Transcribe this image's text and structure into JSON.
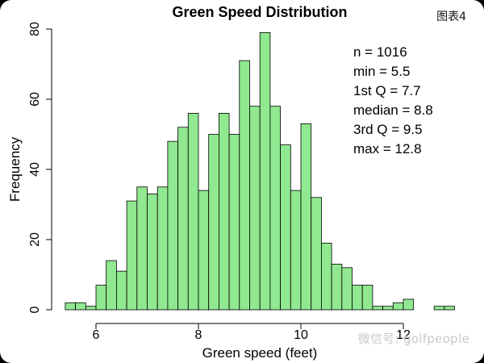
{
  "figure_label": "图表4",
  "watermark": "微信号: golfpeople",
  "chart_data": {
    "type": "bar",
    "title": "Green Speed Distribution",
    "xlabel": "Green speed (feet)",
    "ylabel": "Frequency",
    "xlim": [
      5.5,
      12.8
    ],
    "ylim": [
      0,
      80
    ],
    "xticks": [
      6,
      8,
      10,
      12
    ],
    "yticks": [
      0,
      20,
      40,
      60,
      80
    ],
    "bin_width": 0.2,
    "bin_start": 5.4,
    "values": [
      2,
      2,
      1,
      7,
      14,
      11,
      31,
      35,
      33,
      35,
      48,
      52,
      56,
      34,
      50,
      56,
      50,
      71,
      58,
      79,
      58,
      47,
      34,
      53,
      32,
      19,
      13,
      12,
      7,
      7,
      1,
      1,
      2,
      3,
      0,
      0,
      1,
      1
    ],
    "bar_color": "#90e890",
    "grid": false,
    "legend": "none",
    "stats": {
      "n": "n = 1016",
      "min": "min = 5.5",
      "q1": "1st Q = 7.7",
      "median": "median = 8.8",
      "q3": "3rd Q = 9.5",
      "max": "max = 12.8"
    }
  }
}
